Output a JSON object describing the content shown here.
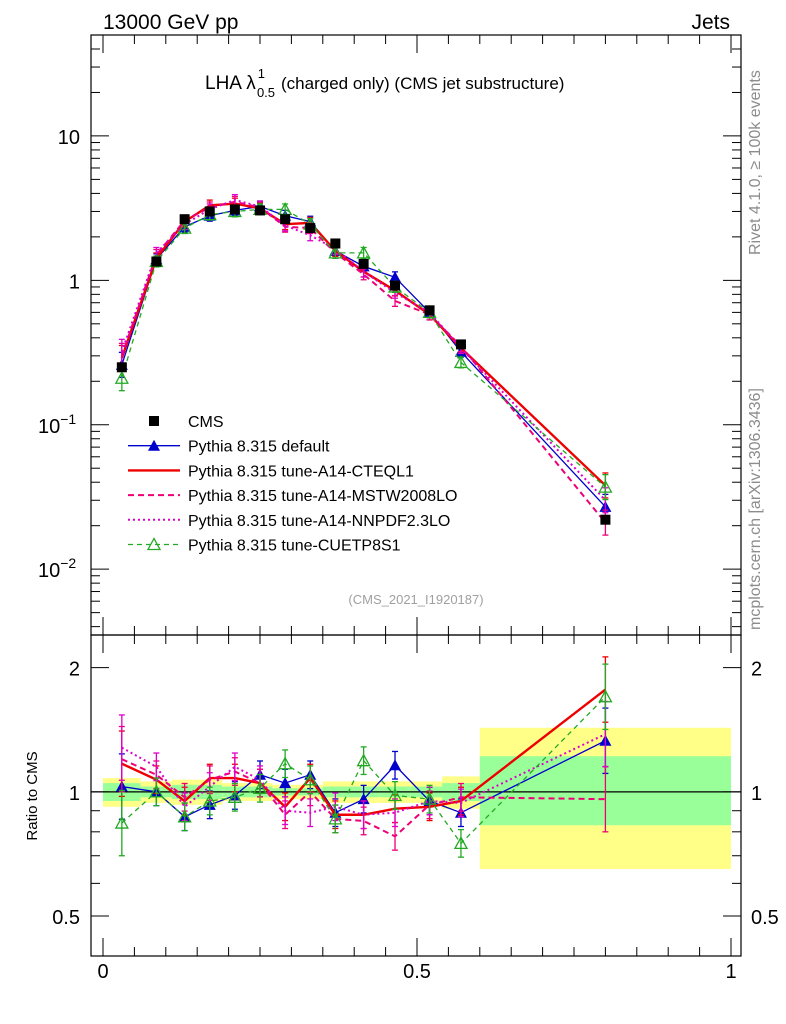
{
  "header": {
    "left": "13000 GeV pp",
    "right": "Jets"
  },
  "side_labels": {
    "rivet": "Rivet 4.1.0, ≥ 100k events",
    "mcplots": "mcplots.cern.ch [arXiv:1306.3436]"
  },
  "colors": {
    "cms": "#000000",
    "default": "#0000cc",
    "a14cteq": "#ee0000",
    "a14mstw": "#ee0077",
    "a14nnpdf": "#dd00cc",
    "cuetp8s1": "#22aa22",
    "band_inner": "#99ff99",
    "band_outer": "#ffff88"
  },
  "chart_data": [
    {
      "type": "line",
      "title": "LHA λ",
      "title_sup": "1",
      "title_sub": "0.5",
      "title_rest": "(charged only) (CMS jet substructure)",
      "watermark": "(CMS_2021_I1920187)",
      "xscale": "linear",
      "yscale": "log",
      "xlim": [
        0,
        1
      ],
      "ylim": [
        0.0035,
        50
      ],
      "ytick_labels": [
        {
          "v": 10,
          "base": "10",
          "exp": ""
        },
        {
          "v": 1,
          "base": "1",
          "exp": ""
        },
        {
          "v": 0.1,
          "base": "10",
          "exp": "−1"
        },
        {
          "v": 0.01,
          "base": "10",
          "exp": "−2"
        }
      ],
      "legend_position": "middle-left",
      "legend": [
        {
          "key": "cms",
          "label": "CMS"
        },
        {
          "key": "default",
          "label": "Pythia 8.315 default"
        },
        {
          "key": "a14cteq",
          "label": "Pythia 8.315 tune-A14-CTEQL1"
        },
        {
          "key": "a14mstw",
          "label": "Pythia 8.315 tune-A14-MSTW2008LO"
        },
        {
          "key": "a14nnpdf",
          "label": "Pythia 8.315 tune-A14-NNPDF2.3LO"
        },
        {
          "key": "cuetp8s1",
          "label": "Pythia 8.315 tune-CUETP8S1"
        }
      ],
      "x": [
        0.03,
        0.085,
        0.13,
        0.17,
        0.21,
        0.25,
        0.29,
        0.33,
        0.37,
        0.415,
        0.465,
        0.52,
        0.57,
        0.8
      ],
      "bin_edges": [
        0.0,
        0.06,
        0.11,
        0.15,
        0.19,
        0.23,
        0.27,
        0.31,
        0.35,
        0.39,
        0.44,
        0.49,
        0.54,
        0.6,
        1.0
      ],
      "series": [
        {
          "key": "cms",
          "name": "CMS",
          "style": "marker-square",
          "values": [
            0.25,
            1.35,
            2.65,
            3.0,
            3.1,
            3.05,
            2.65,
            2.3,
            1.8,
            1.3,
            0.92,
            0.62,
            0.36,
            0.022
          ]
        },
        {
          "key": "default",
          "name": "Pythia 8.315 default",
          "style": "solid-triangle",
          "values": [
            0.26,
            1.4,
            2.35,
            2.8,
            3.05,
            3.25,
            2.8,
            2.55,
            1.6,
            1.25,
            1.05,
            0.6,
            0.32,
            0.027
          ]
        },
        {
          "key": "a14cteq",
          "name": "Pythia 8.315 tune-A14-CTEQL1",
          "style": "solid-thick",
          "values": [
            0.29,
            1.42,
            2.55,
            3.3,
            3.4,
            3.15,
            2.45,
            2.5,
            1.6,
            1.15,
            0.85,
            0.58,
            0.34,
            0.038
          ]
        },
        {
          "key": "a14mstw",
          "name": "Pythia 8.315 tune-A14-MSTW2008LO",
          "style": "dashed",
          "values": [
            0.3,
            1.5,
            2.6,
            3.2,
            3.5,
            3.2,
            2.35,
            2.3,
            1.55,
            1.1,
            0.72,
            0.58,
            0.35,
            0.021
          ]
        },
        {
          "key": "a14nnpdf",
          "name": "Pythia 8.315 tune-A14-NNPDF2.3LO",
          "style": "dotted",
          "values": [
            0.32,
            1.55,
            2.45,
            3.1,
            3.6,
            3.25,
            2.4,
            2.05,
            1.65,
            1.15,
            0.82,
            0.6,
            0.34,
            0.03
          ]
        },
        {
          "key": "cuetp8s1",
          "name": "Pythia 8.315 tune-CUETP8S1",
          "style": "dashed-open-triangle",
          "values": [
            0.21,
            1.35,
            2.3,
            2.85,
            3.0,
            3.1,
            3.1,
            2.45,
            1.55,
            1.55,
            0.9,
            0.6,
            0.27,
            0.037
          ]
        }
      ]
    },
    {
      "type": "line",
      "ylabel": "Ratio to CMS",
      "xscale": "linear",
      "yscale": "log",
      "xlim": [
        0,
        1
      ],
      "ylim": [
        0.4,
        2.4
      ],
      "reference_line": 1,
      "ytick_labels": [
        "0.5",
        "1",
        "2"
      ],
      "xtick_labels": [
        "0",
        "0.5",
        "1"
      ],
      "uncertainty_band": {
        "inner": [
          0.95,
          0.97,
          0.96,
          0.96,
          0.97,
          0.97,
          0.98,
          0.98,
          0.97,
          0.97,
          0.97,
          0.97,
          0.95,
          0.83
        ],
        "inner_hi": [
          1.05,
          1.03,
          1.04,
          1.04,
          1.03,
          1.03,
          1.02,
          1.02,
          1.03,
          1.03,
          1.03,
          1.03,
          1.05,
          1.22
        ],
        "outer": [
          0.92,
          0.94,
          0.93,
          0.93,
          0.95,
          0.95,
          0.96,
          0.96,
          0.94,
          0.94,
          0.94,
          0.94,
          0.91,
          0.65
        ],
        "outer_hi": [
          1.08,
          1.06,
          1.07,
          1.07,
          1.05,
          1.05,
          1.04,
          1.04,
          1.06,
          1.06,
          1.06,
          1.06,
          1.09,
          1.43
        ]
      },
      "series": [
        {
          "key": "default",
          "values": [
            1.03,
            1.0,
            0.87,
            0.93,
            0.98,
            1.1,
            1.05,
            1.1,
            0.89,
            0.96,
            1.16,
            0.95,
            0.89,
            1.33
          ]
        },
        {
          "key": "a14cteq",
          "values": [
            1.17,
            1.07,
            0.95,
            1.08,
            1.08,
            1.05,
            0.92,
            1.08,
            0.88,
            0.88,
            0.91,
            0.92,
            0.95,
            1.77
          ]
        },
        {
          "key": "a14mstw",
          "values": [
            1.2,
            1.1,
            0.97,
            1.07,
            1.12,
            1.05,
            0.88,
            1.0,
            0.86,
            0.85,
            0.78,
            0.93,
            0.97,
            0.96
          ]
        },
        {
          "key": "a14nnpdf",
          "values": [
            1.28,
            1.15,
            0.92,
            1.03,
            1.15,
            1.07,
            0.9,
            0.89,
            0.92,
            0.88,
            0.89,
            0.95,
            0.94,
            1.38
          ]
        },
        {
          "key": "cuetp8s1",
          "values": [
            0.84,
            1.0,
            0.87,
            0.95,
            0.97,
            1.02,
            1.17,
            1.07,
            0.86,
            1.19,
            0.98,
            0.96,
            0.75,
            1.7
          ]
        }
      ]
    }
  ]
}
